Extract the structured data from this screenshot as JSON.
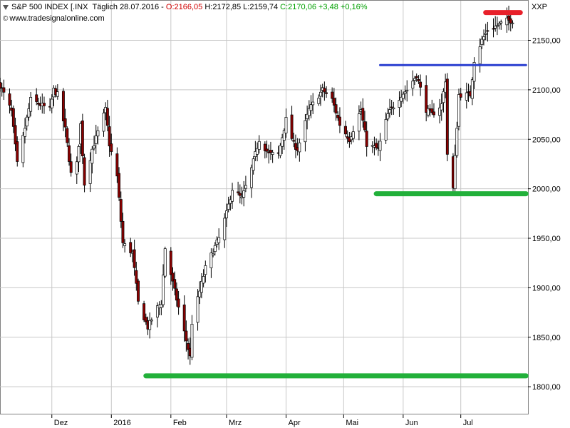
{
  "header": {
    "name": "S&P 500 INDEX [.INX",
    "period": "Täglich",
    "date": "28.07.2016",
    "open": "O:2166,05",
    "high": "H:2172,85",
    "low": "L:2159,74",
    "close": "C:2170,06",
    "change": "+3,48",
    "change_pct": "+0,16%",
    "copyright": "www.tradesignalonline.com"
  },
  "symbol": "XXP",
  "colors": {
    "up_candle": "#ffffff",
    "down_candle": "#8b0000",
    "candle_outline": "#000000",
    "grid": "#c8c8c8",
    "resistance": "#e8202a",
    "blue_line": "#2a3fd0",
    "support": "#22b03a"
  },
  "chart_data": {
    "type": "candlestick",
    "y_ticks": [
      "1800,00",
      "1850,00",
      "1900,00",
      "1950,00",
      "2000,00",
      "2050,00",
      "2100,00",
      "2150,00"
    ],
    "ylim": [
      1772,
      2190
    ],
    "x_ticks": [
      "Dez",
      "2016",
      "Feb",
      "Mrz",
      "Apr",
      "Mai",
      "Jun",
      "Jul"
    ],
    "period": "Täglich",
    "xlim": [
      "2015-11-04",
      "2016-08-05"
    ],
    "levels": [
      {
        "type": "resistance",
        "value": 2178,
        "from": "2016-07-14",
        "to": "2016-08-01",
        "color": "#e8202a"
      },
      {
        "type": "horizontal",
        "value": 2125,
        "from": "2016-05-20",
        "to": "2016-08-04",
        "color": "#2a3fd0"
      },
      {
        "type": "support",
        "value": 1995,
        "from": "2016-05-18",
        "to": "2016-08-04",
        "color": "#22b03a"
      },
      {
        "type": "support",
        "value": 1811,
        "from": "2016-01-19",
        "to": "2016-08-04",
        "color": "#22b03a"
      }
    ],
    "anchors": [
      [
        "2015-11-04",
        2105
      ],
      [
        "2015-11-10",
        2078
      ],
      [
        "2015-11-13",
        2025
      ],
      [
        "2015-11-16",
        2052
      ],
      [
        "2015-11-20",
        2090
      ],
      [
        "2015-11-30",
        2080
      ],
      [
        "2015-12-02",
        2100
      ],
      [
        "2015-12-04",
        2095
      ],
      [
        "2015-12-08",
        2060
      ],
      [
        "2015-12-11",
        2015
      ],
      [
        "2015-12-14",
        2025
      ],
      [
        "2015-12-16",
        2065
      ],
      [
        "2015-12-18",
        2005
      ],
      [
        "2015-12-22",
        2040
      ],
      [
        "2015-12-29",
        2080
      ],
      [
        "2015-12-31",
        2045
      ],
      [
        "2016-01-04",
        2012
      ],
      [
        "2016-01-07",
        1945
      ],
      [
        "2016-01-12",
        1935
      ],
      [
        "2016-01-15",
        1885
      ],
      [
        "2016-01-20",
        1860
      ],
      [
        "2016-01-25",
        1880
      ],
      [
        "2016-01-27",
        1885
      ],
      [
        "2016-01-29",
        1940
      ],
      [
        "2016-02-02",
        1905
      ],
      [
        "2016-02-05",
        1880
      ],
      [
        "2016-02-11",
        1830
      ],
      [
        "2016-02-12",
        1865
      ],
      [
        "2016-02-19",
        1920
      ],
      [
        "2016-02-26",
        1950
      ],
      [
        "2016-03-01",
        1975
      ],
      [
        "2016-03-04",
        2000
      ],
      [
        "2016-03-09",
        1990
      ],
      [
        "2016-03-14",
        2020
      ],
      [
        "2016-03-18",
        2050
      ],
      [
        "2016-03-23",
        2035
      ],
      [
        "2016-03-28",
        2035
      ],
      [
        "2016-04-01",
        2070
      ],
      [
        "2016-04-05",
        2045
      ],
      [
        "2016-04-07",
        2040
      ],
      [
        "2016-04-13",
        2080
      ],
      [
        "2016-04-20",
        2100
      ],
      [
        "2016-04-25",
        2090
      ],
      [
        "2016-04-29",
        2065
      ],
      [
        "2016-05-04",
        2050
      ],
      [
        "2016-05-10",
        2080
      ],
      [
        "2016-05-13",
        2045
      ],
      [
        "2016-05-19",
        2040
      ],
      [
        "2016-05-24",
        2075
      ],
      [
        "2016-05-31",
        2095
      ],
      [
        "2016-06-03",
        2100
      ],
      [
        "2016-06-08",
        2115
      ],
      [
        "2016-06-13",
        2080
      ],
      [
        "2016-06-16",
        2075
      ],
      [
        "2016-06-21",
        2085
      ],
      [
        "2016-06-23",
        2110
      ],
      [
        "2016-06-24",
        2035
      ],
      [
        "2016-06-27",
        2000
      ],
      [
        "2016-06-30",
        2095
      ],
      [
        "2016-07-06",
        2095
      ],
      [
        "2016-07-08",
        2130
      ],
      [
        "2016-07-12",
        2150
      ],
      [
        "2016-07-15",
        2160
      ],
      [
        "2016-07-20",
        2165
      ],
      [
        "2016-07-25",
        2170
      ],
      [
        "2016-07-28",
        2170
      ]
    ]
  }
}
